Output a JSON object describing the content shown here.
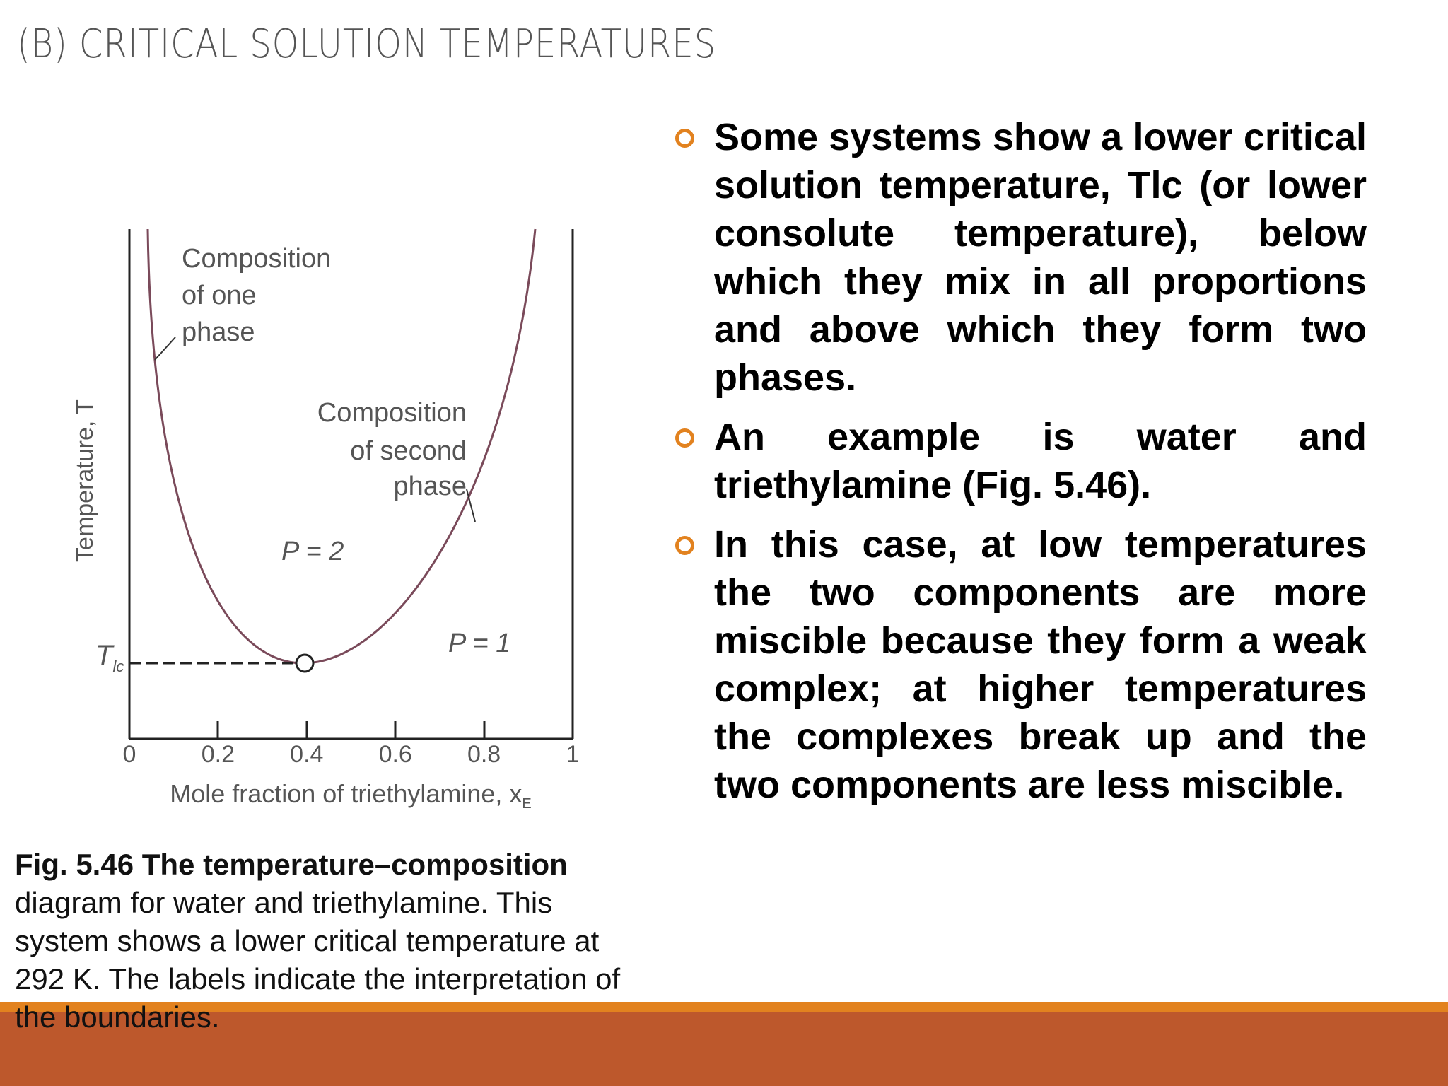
{
  "title": "(B) CRITICAL SOLUTION TEMPERATURES",
  "figure": {
    "y_axis_label": "Temperature, T",
    "tlc_label": "T",
    "tlc_subscript": "lc",
    "phase_one_label": [
      "Composition",
      "of one",
      "phase"
    ],
    "phase_two_label": [
      "Composition",
      "of second",
      "phase"
    ],
    "region_p2": "P = 2",
    "region_p1": "P = 1",
    "x_tick_labels": [
      "0",
      "0.2",
      "0.4",
      "0.6",
      "0.8",
      "1"
    ],
    "x_axis_label": "Mole fraction of triethylamine, x",
    "x_axis_subscript": "E"
  },
  "caption": {
    "label": "Fig. 5.46 The temperature–composition",
    "text": "diagram for water and triethylamine. This system shows a lower critical temperature at 292 K. The labels indicate the interpretation of the boundaries."
  },
  "bullets": [
    "Some systems show a lower critical solution temperature, Tlc (or lower consolute temperature), below which they mix in all proportions and above which they form two phases.",
    "An example is water and triethylamine (Fig. 5.46).",
    "In this case, at low temperatures the two components are more miscible because they form a weak complex; at higher temperatures the complexes break up and the two components are less miscible."
  ]
}
